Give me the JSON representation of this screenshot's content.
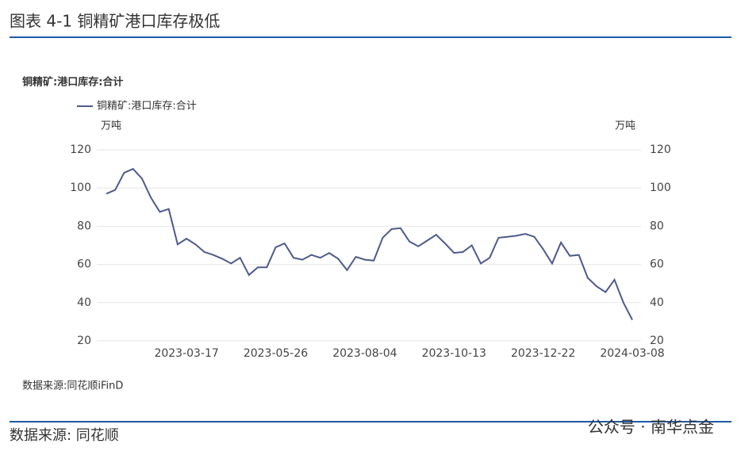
{
  "header": {
    "title": "图表 4-1 铜精矿港口库存极低"
  },
  "chart_data": {
    "type": "line",
    "title": "铜精矿:港口库存:合计",
    "categories": [
      null,
      null,
      null,
      null,
      null,
      null,
      null,
      null,
      null,
      "2023-03-17",
      null,
      null,
      null,
      null,
      null,
      null,
      null,
      null,
      null,
      "2023-05-26",
      null,
      null,
      null,
      null,
      null,
      null,
      null,
      null,
      null,
      "2023-08-04",
      null,
      null,
      null,
      null,
      null,
      null,
      null,
      null,
      null,
      "2023-10-13",
      null,
      null,
      null,
      null,
      null,
      null,
      null,
      null,
      null,
      "2023-12-22",
      null,
      null,
      null,
      null,
      null,
      null,
      null,
      null,
      null,
      "2024-03-08"
    ],
    "series": [
      {
        "name": "铜精矿:港口库存:合计",
        "color": "#4e5a8c",
        "values": [
          97,
          99,
          108,
          110,
          105,
          95,
          87.5,
          89,
          70.5,
          73.5,
          70.5,
          66.5,
          65,
          63,
          60.5,
          63.5,
          54.5,
          58.5,
          58.5,
          69,
          71,
          63.5,
          62.5,
          65,
          63.5,
          66,
          63,
          57,
          64,
          62.5,
          62,
          74,
          78.5,
          79,
          72,
          69.5,
          72.5,
          75.5,
          71,
          66,
          66.5,
          70,
          60.5,
          63.5,
          74,
          74.5,
          75,
          76,
          74.5,
          68,
          60.5,
          71.5,
          64.5,
          65,
          53,
          48.5,
          45.5,
          52,
          40,
          31
        ]
      }
    ],
    "ylabel": "万吨",
    "y2label": "万吨",
    "ylim": [
      20,
      120
    ],
    "yticks": [
      20,
      40,
      60,
      80,
      100,
      120
    ],
    "y2lim": [
      20,
      120
    ],
    "y2ticks": [
      20,
      40,
      60,
      80,
      100,
      120
    ],
    "grid": true,
    "legend": "top-left",
    "source": "数据来源:同花顺iFinD"
  },
  "footer": {
    "source": "数据来源: 同花顺",
    "watermark": "公众号 · 南华点金"
  }
}
